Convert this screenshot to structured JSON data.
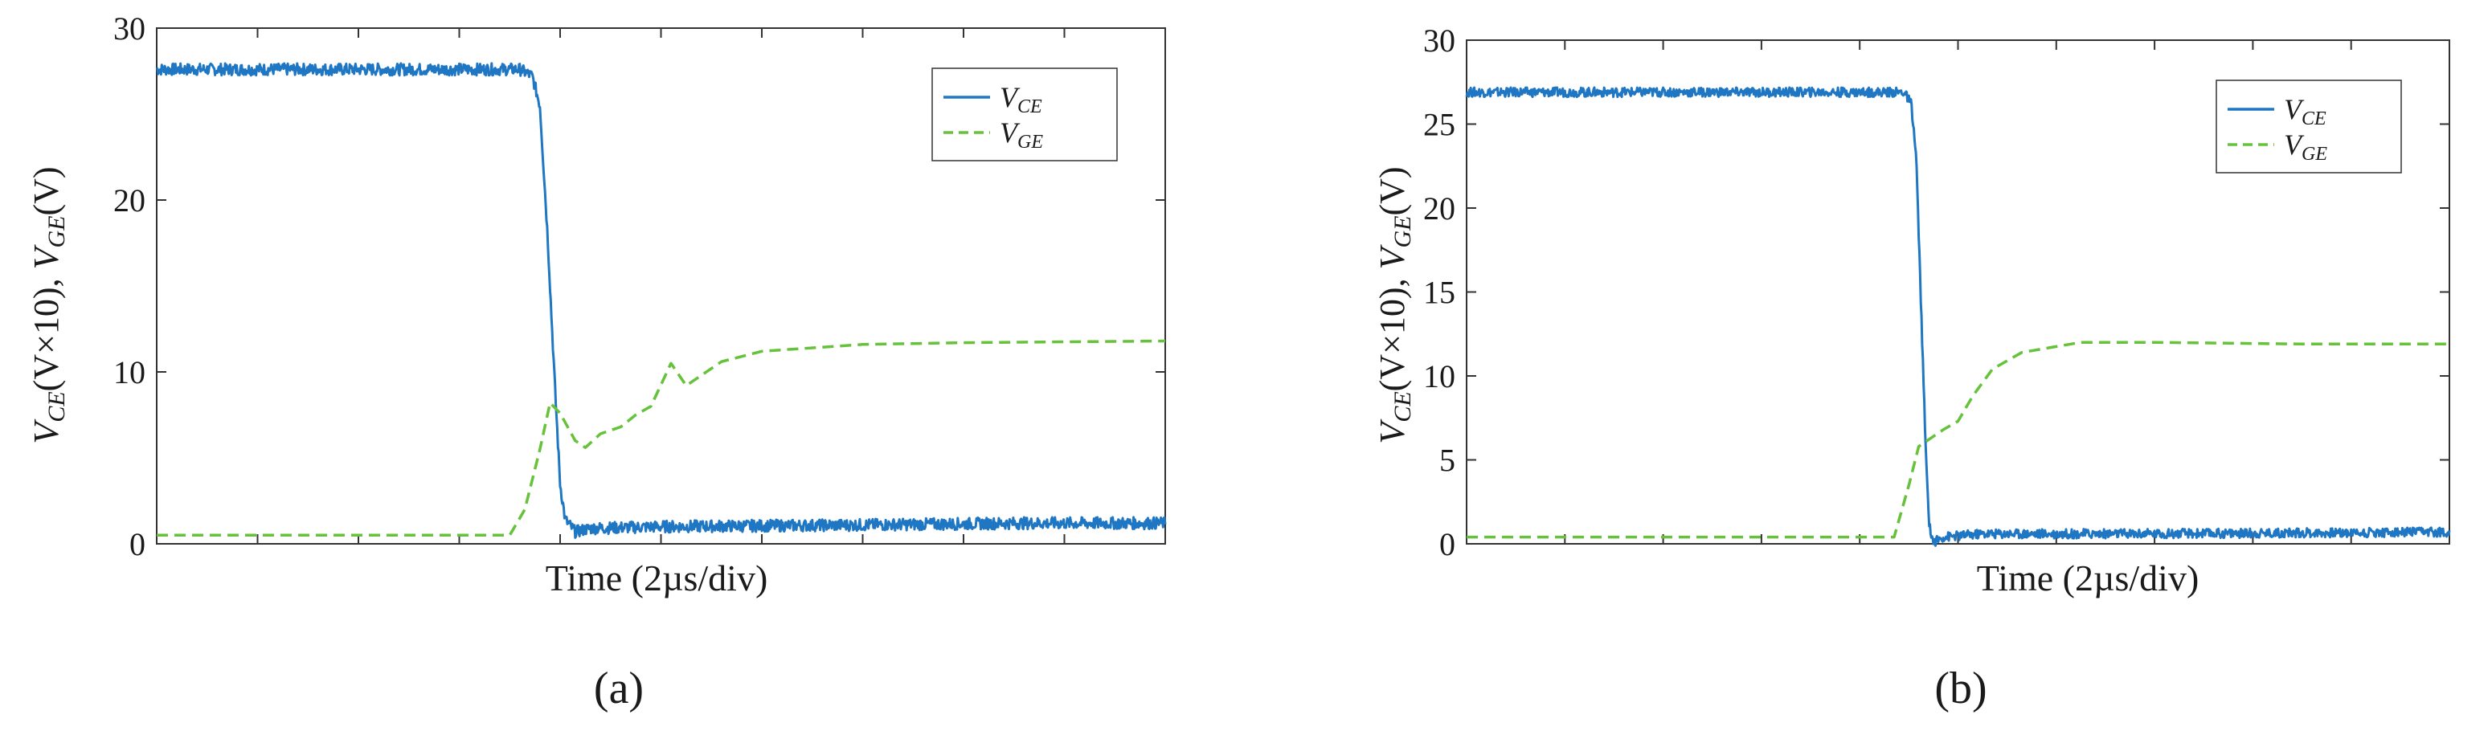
{
  "colors": {
    "vce": "#1f77c4",
    "vge": "#66c23a",
    "axis": "#333333"
  },
  "chart_data": [
    {
      "type": "line",
      "caption": "(a)",
      "ylabel": {
        "v": "V",
        "sub1": "CE",
        "mid": "(V×10), ",
        "v2": "V",
        "sub2": "GE",
        "tail": "(V)"
      },
      "xlabel": "Time (2µs/div)",
      "ylim": [
        0,
        30
      ],
      "yticks": [
        0,
        10,
        20,
        30
      ],
      "xlim": [
        0,
        20
      ],
      "xdivisions": 10,
      "legend": {
        "position": "top-right",
        "entries": [
          {
            "sym": "V",
            "sub": "CE"
          },
          {
            "sym": "V",
            "sub": "GE"
          }
        ]
      },
      "series": [
        {
          "name": "VCE",
          "style": "solid",
          "noise": 0.35,
          "points": [
            [
              0,
              27.6
            ],
            [
              7.2,
              27.6
            ],
            [
              7.45,
              27.2
            ],
            [
              7.6,
              25.5
            ],
            [
              7.75,
              18
            ],
            [
              7.9,
              9
            ],
            [
              8.0,
              3.5
            ],
            [
              8.1,
              1.4
            ],
            [
              8.3,
              0.7
            ],
            [
              8.6,
              0.9
            ],
            [
              10,
              1.0
            ],
            [
              14,
              1.1
            ],
            [
              17,
              1.2
            ],
            [
              20,
              1.2
            ]
          ]
        },
        {
          "name": "VGE",
          "style": "dashed",
          "noise": 0,
          "points": [
            [
              0,
              0.5
            ],
            [
              7.0,
              0.5
            ],
            [
              7.3,
              2.0
            ],
            [
              7.6,
              5.5
            ],
            [
              7.8,
              8.2
            ],
            [
              8.0,
              7.6
            ],
            [
              8.3,
              6.0
            ],
            [
              8.5,
              5.6
            ],
            [
              8.8,
              6.4
            ],
            [
              9.2,
              6.8
            ],
            [
              9.5,
              7.5
            ],
            [
              9.8,
              8.0
            ],
            [
              10.2,
              10.5
            ],
            [
              10.5,
              9.2
            ],
            [
              11.2,
              10.6
            ],
            [
              12,
              11.2
            ],
            [
              14,
              11.6
            ],
            [
              16,
              11.7
            ],
            [
              20,
              11.8
            ]
          ]
        }
      ]
    },
    {
      "type": "line",
      "caption": "(b)",
      "ylabel": {
        "v": "V",
        "sub1": "CE",
        "mid": "(V×10), ",
        "v2": "V",
        "sub2": "GE",
        "tail": "(V)"
      },
      "xlabel": "Time (2µs/div)",
      "ylim": [
        0,
        30
      ],
      "yticks": [
        0,
        5,
        10,
        15,
        20,
        25,
        30
      ],
      "xlim": [
        0,
        20
      ],
      "xdivisions": 10,
      "legend": {
        "position": "top-right",
        "entries": [
          {
            "sym": "V",
            "sub": "CE"
          },
          {
            "sym": "V",
            "sub": "GE"
          }
        ]
      },
      "series": [
        {
          "name": "VCE",
          "style": "solid",
          "noise": 0.28,
          "points": [
            [
              0,
              26.9
            ],
            [
              8.9,
              26.9
            ],
            [
              9.05,
              26.2
            ],
            [
              9.15,
              23
            ],
            [
              9.25,
              14
            ],
            [
              9.35,
              5
            ],
            [
              9.42,
              1.0
            ],
            [
              9.5,
              0.1
            ],
            [
              9.7,
              0.4
            ],
            [
              10.5,
              0.6
            ],
            [
              14,
              0.6
            ],
            [
              20,
              0.7
            ]
          ]
        },
        {
          "name": "VGE",
          "style": "dashed",
          "noise": 0,
          "points": [
            [
              0,
              0.4
            ],
            [
              8.7,
              0.4
            ],
            [
              9.0,
              3.5
            ],
            [
              9.2,
              5.8
            ],
            [
              9.4,
              6.2
            ],
            [
              9.7,
              6.8
            ],
            [
              10.0,
              7.3
            ],
            [
              10.3,
              8.8
            ],
            [
              10.7,
              10.4
            ],
            [
              11.3,
              11.4
            ],
            [
              12.5,
              12.0
            ],
            [
              14,
              12.0
            ],
            [
              17,
              11.9
            ],
            [
              20,
              11.9
            ]
          ]
        }
      ]
    }
  ]
}
